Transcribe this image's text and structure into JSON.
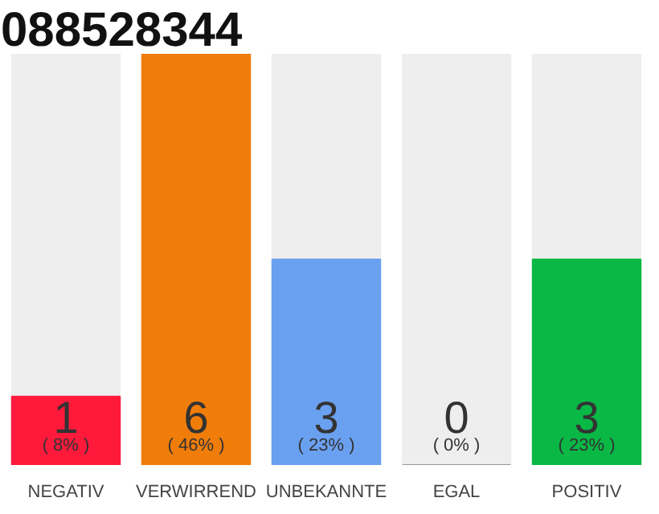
{
  "chart_data": {
    "type": "bar",
    "title": "088528344",
    "categories": [
      "NEGATIV",
      "VERWIRREND",
      "UNBEKANNTE",
      "EGAL",
      "POSITIV"
    ],
    "values": [
      1,
      6,
      3,
      0,
      3
    ],
    "colors": [
      "#ff1a3c",
      "#f07d0a",
      "#6aa0f0",
      "#999999",
      "#0ab846"
    ],
    "ylim": [
      0,
      6
    ],
    "data_labels": true,
    "grid": false,
    "tick_labels": "x",
    "annotations": [
      {
        "text": "( 8% )",
        "x": "NEGATIV",
        "y": 0
      },
      {
        "text": "( 46% )",
        "x": "VERWIRREND",
        "y": 0
      },
      {
        "text": "( 23% )",
        "x": "UNBEKANNTE",
        "y": 0
      },
      {
        "text": "( 0% )",
        "x": "EGAL",
        "y": 0
      },
      {
        "text": "( 23% )",
        "x": "POSITIV",
        "y": 0
      }
    ]
  }
}
